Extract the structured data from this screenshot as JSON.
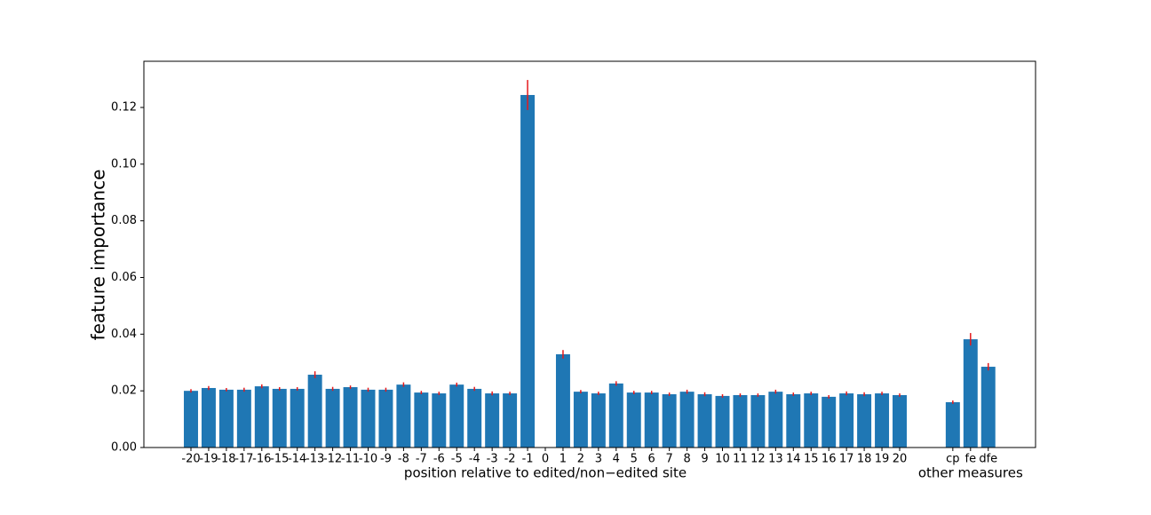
{
  "chart_data": {
    "type": "bar",
    "ylabel": "feature importance",
    "xlabels": [
      "position relative to edited/non−edited site",
      "other measures"
    ],
    "categories": [
      "-20",
      "-19",
      "-18",
      "-17",
      "-16",
      "-15",
      "-14",
      "-13",
      "-12",
      "-11",
      "-10",
      "-9",
      "-8",
      "-7",
      "-6",
      "-5",
      "-4",
      "-3",
      "-2",
      "-1",
      "0",
      "1",
      "2",
      "3",
      "4",
      "5",
      "6",
      "7",
      "8",
      "9",
      "10",
      "11",
      "12",
      "13",
      "14",
      "15",
      "16",
      "17",
      "18",
      "19",
      "20",
      null,
      null,
      "cp",
      "fe",
      "dfe"
    ],
    "values": [
      0.02,
      0.021,
      0.0204,
      0.0204,
      0.0216,
      0.0207,
      0.0207,
      0.0257,
      0.0207,
      0.0213,
      0.0204,
      0.0204,
      0.0222,
      0.0194,
      0.0191,
      0.0222,
      0.0207,
      0.0191,
      0.0191,
      0.1244,
      null,
      0.0329,
      0.0197,
      0.0191,
      0.0226,
      0.0194,
      0.0194,
      0.0188,
      0.0197,
      0.0188,
      0.0182,
      0.0185,
      0.0185,
      0.0197,
      0.0188,
      0.0191,
      0.0179,
      0.0191,
      0.0188,
      0.0191,
      0.0185,
      null,
      null,
      0.016,
      0.0382,
      0.0285
    ],
    "errors": [
      0.0006,
      0.0007,
      0.0006,
      0.0007,
      0.0007,
      0.0006,
      0.0006,
      0.0012,
      0.0007,
      0.0006,
      0.0007,
      0.0007,
      0.0008,
      0.0006,
      0.0006,
      0.0007,
      0.0007,
      0.0007,
      0.0006,
      0.0053,
      null,
      0.0015,
      0.0006,
      0.0006,
      0.0008,
      0.0006,
      0.0006,
      0.0006,
      0.0007,
      0.0007,
      0.0006,
      0.0006,
      0.0006,
      0.0007,
      0.0006,
      0.0006,
      0.0006,
      0.0007,
      0.0007,
      0.0006,
      0.0006,
      null,
      null,
      0.0006,
      0.0022,
      0.0013
    ],
    "color": "#1f77b4",
    "error_color": "#e41a1c",
    "ylim": [
      0,
      0.1363
    ],
    "yticks": [
      {
        "value": 0,
        "label": "0.00"
      },
      {
        "value": 0.02,
        "label": "0.02"
      },
      {
        "value": 0.04,
        "label": "0.04"
      },
      {
        "value": 0.06,
        "label": "0.06"
      },
      {
        "value": 0.08,
        "label": "0.08"
      },
      {
        "value": 0.1,
        "label": "0.10"
      },
      {
        "value": 0.12,
        "label": "0.12"
      }
    ]
  }
}
